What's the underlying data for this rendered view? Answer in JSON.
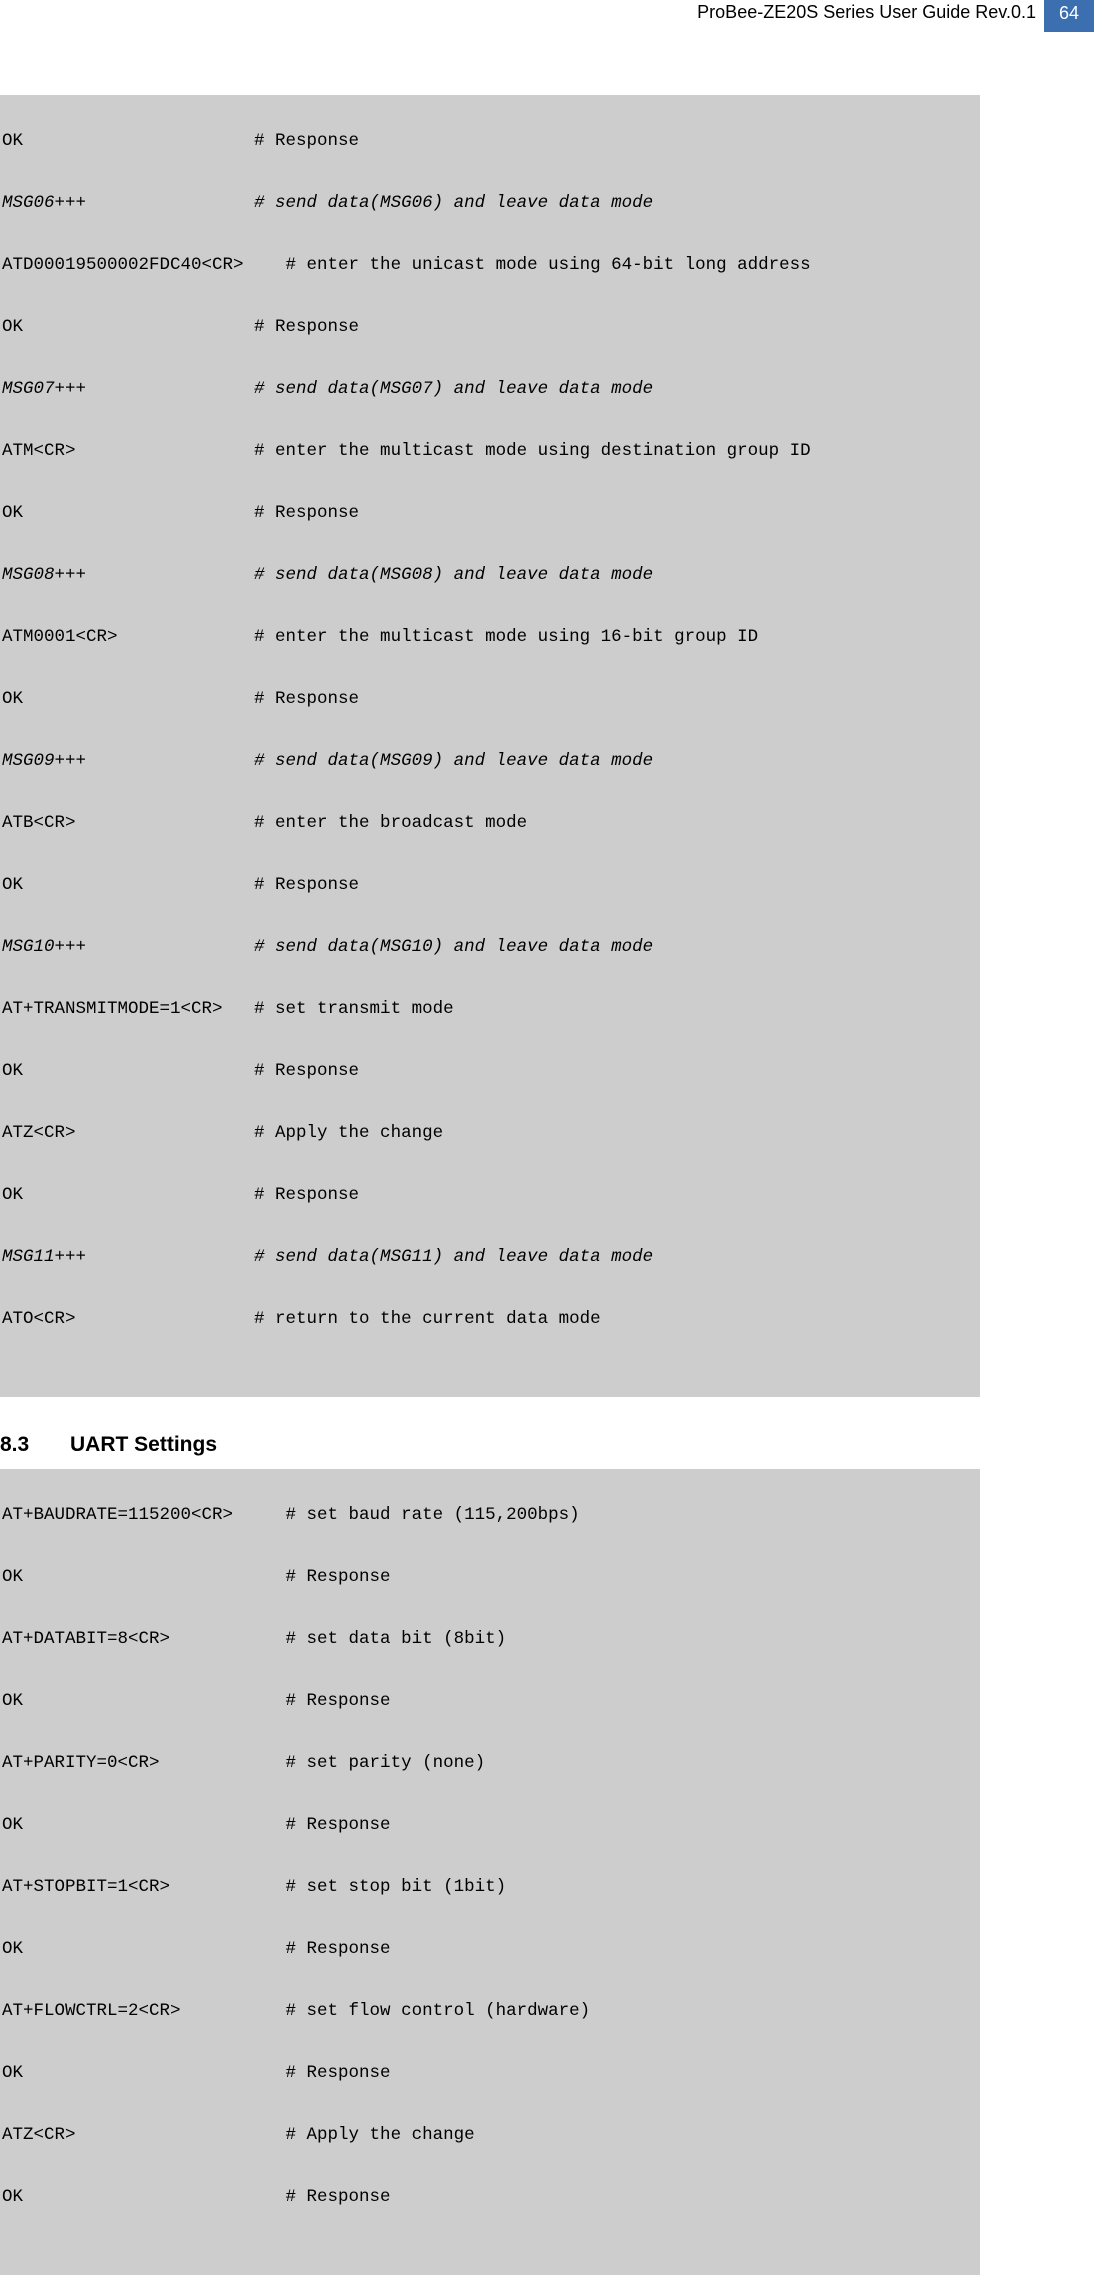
{
  "header": {
    "title": "ProBee-ZE20S Series User Guide Rev.0.1",
    "page": "64"
  },
  "section": {
    "number": "8.3",
    "title": "UART Settings"
  },
  "code1": {
    "l0": "OK                      # Response",
    "l1": "MSG06+++                # send data(MSG06) and leave data mode",
    "l2": "ATD00019500002FDC40<CR>    # enter the unicast mode using 64-bit long address",
    "l3": "OK                      # Response",
    "l4": "MSG07+++                # send data(MSG07) and leave data mode",
    "l5": "ATM<CR>                 # enter the multicast mode using destination group ID",
    "l6": "OK                      # Response",
    "l7": "MSG08+++                # send data(MSG08) and leave data mode",
    "l8": "ATM0001<CR>             # enter the multicast mode using 16-bit group ID",
    "l9": "OK                      # Response",
    "l10": "MSG09+++                # send data(MSG09) and leave data mode",
    "l11": "ATB<CR>                 # enter the broadcast mode",
    "l12": "OK                      # Response",
    "l13": "MSG10+++                # send data(MSG10) and leave data mode",
    "l14": "AT+TRANSMITMODE=1<CR>   # set transmit mode",
    "l15": "OK                      # Response",
    "l16": "ATZ<CR>                 # Apply the change",
    "l17": "OK                      # Response",
    "l18": "MSG11+++                # send data(MSG11) and leave data mode",
    "l19": "ATO<CR>                 # return to the current data mode"
  },
  "code2": {
    "l0": "AT+BAUDRATE=115200<CR>     # set baud rate (115,200bps)",
    "l1": "OK                         # Response",
    "l2": "AT+DATABIT=8<CR>           # set data bit (8bit)",
    "l3": "OK                         # Response",
    "l4": "AT+PARITY=0<CR>            # set parity (none)",
    "l5": "OK                         # Response",
    "l6": "AT+STOPBIT=1<CR>           # set stop bit (1bit)",
    "l7": "OK                         # Response",
    "l8": "AT+FLOWCTRL=2<CR>          # set flow control (hardware)",
    "l9": "OK                         # Response",
    "l10": "ATZ<CR>                    # Apply the change",
    "l11": "OK                         # Response"
  }
}
